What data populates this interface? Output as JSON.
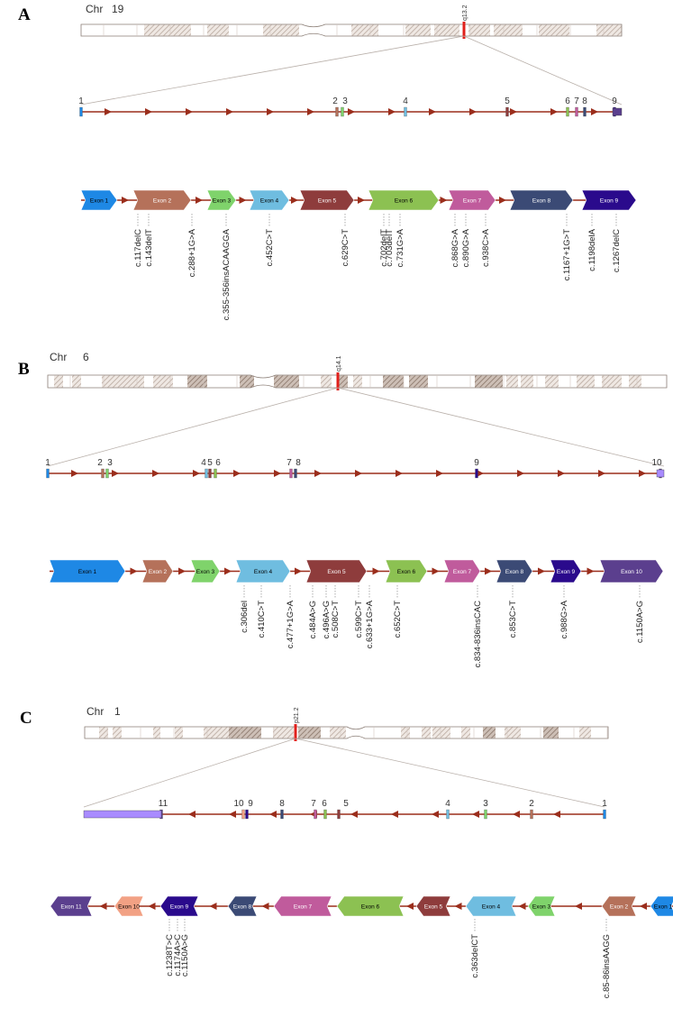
{
  "panels": [
    {
      "id": "A",
      "label": "A",
      "chr_label": "Chr",
      "chr_number": "19",
      "band": "q13.2",
      "exon_numbers": [
        "1",
        "2",
        "3",
        "4",
        "5",
        "6",
        "7",
        "8",
        "9"
      ],
      "exons": [
        {
          "label": "Exon 1",
          "color": "#1e88e5"
        },
        {
          "label": "Exon 2",
          "color": "#b5715a"
        },
        {
          "label": "Exon 3",
          "color": "#7fd36b"
        },
        {
          "label": "Exon 4",
          "color": "#6fbde0"
        },
        {
          "label": "Exon 5",
          "color": "#8e3c3c"
        },
        {
          "label": "Exon 6",
          "color": "#8cc152"
        },
        {
          "label": "Exon 7",
          "color": "#c05b9c"
        },
        {
          "label": "Exon 8",
          "color": "#3b4a75"
        },
        {
          "label": "Exon 9",
          "color": "#2a0a8c"
        }
      ],
      "mutations": [
        "c.117delC",
        "c.143delT",
        "c.288+1G>A",
        "c.355-356insACAAGGA",
        "c.452C>T",
        "c.629C>T",
        "c.702delT",
        "c.703delT",
        "c.731G>A",
        "c.868G>A",
        "c.890G>A",
        "c.938C>A",
        "c.1167+1G>T",
        "c.1198delA",
        "c.1267delC"
      ]
    },
    {
      "id": "B",
      "label": "B",
      "chr_label": "Chr",
      "chr_number": "6",
      "band": "q14.1",
      "exon_numbers": [
        "1",
        "2",
        "3",
        "4",
        "5",
        "6",
        "7",
        "8",
        "9",
        "10"
      ],
      "exons": [
        {
          "label": "Exon 1",
          "color": "#1e88e5"
        },
        {
          "label": "Exon 2",
          "color": "#b5715a"
        },
        {
          "label": "Exon 3",
          "color": "#7fd36b"
        },
        {
          "label": "Exon 4",
          "color": "#6fbde0"
        },
        {
          "label": "Exon 5",
          "color": "#8e3c3c"
        },
        {
          "label": "Exon 6",
          "color": "#8cc152"
        },
        {
          "label": "Exon 7",
          "color": "#c05b9c"
        },
        {
          "label": "Exon 8",
          "color": "#3b4a75"
        },
        {
          "label": "Exon 9",
          "color": "#2a0a8c"
        },
        {
          "label": "Exon 10",
          "color": "#5b3f8e"
        }
      ],
      "mutations": [
        "c.306del",
        "c.410C>T",
        "c.477+1G>A",
        "c.484A>G",
        "c.496A>G",
        "c.508C>T",
        "c.599C>T",
        "c.633+1G>A",
        "c.652C>T",
        "c.834-836insCAC",
        "c.853C>T",
        "c.988G>A",
        "c.1150A>G"
      ]
    },
    {
      "id": "C",
      "label": "C",
      "chr_label": "Chr",
      "chr_number": "1",
      "band": "p21.2",
      "exon_numbers": [
        "1",
        "2",
        "3",
        "4",
        "5",
        "6",
        "7",
        "8",
        "9",
        "10",
        "11"
      ],
      "exons": [
        {
          "label": "Exon 11",
          "color": "#5b3f8e"
        },
        {
          "label": "Exon 10",
          "color": "#f2a184"
        },
        {
          "label": "Exon 9",
          "color": "#2a0a8c"
        },
        {
          "label": "Exon 8",
          "color": "#3b4a75"
        },
        {
          "label": "Exon 7",
          "color": "#c05b9c"
        },
        {
          "label": "Exon 6",
          "color": "#8cc152"
        },
        {
          "label": "Exon 5",
          "color": "#8e3c3c"
        },
        {
          "label": "Exon 4",
          "color": "#6fbde0"
        },
        {
          "label": "Exon 3",
          "color": "#7fd36b"
        },
        {
          "label": "Exon 2",
          "color": "#b5715a"
        },
        {
          "label": "Exon 1",
          "color": "#1e88e5"
        }
      ],
      "mutations": [
        "c.1238T>C",
        "c.1174A>C",
        "c.1150A>G",
        "c.363delCT",
        "c.85-86insAAGG"
      ]
    }
  ],
  "colors": {
    "chromosome_outline": "#8a7d75",
    "chromosome_band": "#b8a89e",
    "centromere_marker": "#e0201b",
    "gene_line": "#9b2e1c",
    "connector_line": "#b9b0aa",
    "exon_c_terminal": "#a98bff"
  }
}
